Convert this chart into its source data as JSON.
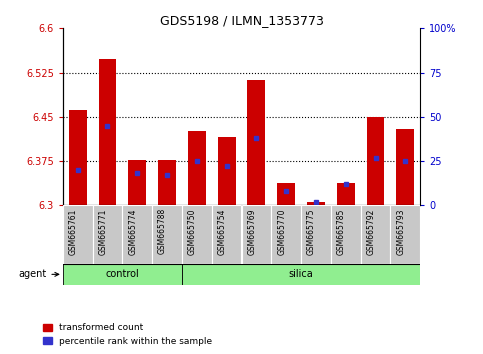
{
  "title": "GDS5198 / ILMN_1353773",
  "samples": [
    "GSM665761",
    "GSM665771",
    "GSM665774",
    "GSM665788",
    "GSM665750",
    "GSM665754",
    "GSM665769",
    "GSM665770",
    "GSM665775",
    "GSM665785",
    "GSM665792",
    "GSM665793"
  ],
  "groups": [
    "control",
    "control",
    "control",
    "control",
    "silica",
    "silica",
    "silica",
    "silica",
    "silica",
    "silica",
    "silica",
    "silica"
  ],
  "transformed_count": [
    6.462,
    6.548,
    6.376,
    6.377,
    6.426,
    6.416,
    6.512,
    6.338,
    6.305,
    6.338,
    6.45,
    6.43
  ],
  "percentile_rank": [
    20,
    45,
    18,
    17,
    25,
    22,
    38,
    8,
    2,
    12,
    27,
    25
  ],
  "ylim": [
    6.3,
    6.6
  ],
  "yticks_left": [
    6.3,
    6.375,
    6.45,
    6.525,
    6.6
  ],
  "ytick_labels_left": [
    "6.3",
    "6.375",
    "6.45",
    "6.525",
    "6.6"
  ],
  "yticks_right": [
    0,
    25,
    50,
    75,
    100
  ],
  "ytick_labels_right": [
    "0",
    "25",
    "50",
    "75",
    "100%"
  ],
  "hlines": [
    6.375,
    6.45,
    6.525
  ],
  "bar_color": "#cc0000",
  "dot_color": "#3333cc",
  "bar_width": 0.6,
  "group_fill": "#90ee90",
  "tick_label_bg": "#c8c8c8",
  "background_color": "#ffffff",
  "ylabel_left_color": "#cc0000",
  "ylabel_right_color": "#0000cc",
  "agent_label": "agent",
  "control_label": "control",
  "silica_label": "silica",
  "legend_tc": "transformed count",
  "legend_pr": "percentile rank within the sample",
  "control_range": [
    0,
    3
  ],
  "silica_range": [
    4,
    11
  ]
}
